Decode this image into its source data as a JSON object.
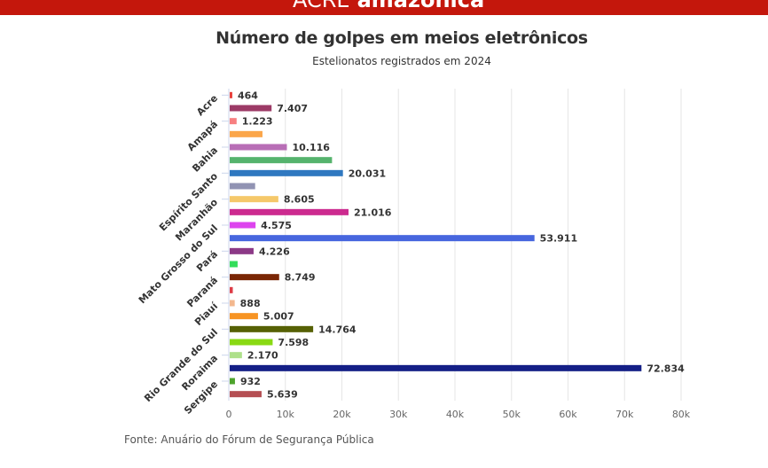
{
  "header": {
    "region": "ACRE",
    "brand": "amazônica"
  },
  "chart_data": {
    "type": "bar",
    "orientation": "horizontal",
    "title": "Número de golpes em meios eletrônicos",
    "subtitle": "Estelionatos registrados em 2024",
    "source": "Fonte: Anuário do Fórum de Segurança Pública",
    "xlim": [
      0,
      80000
    ],
    "xticks": [
      {
        "v": 0,
        "l": "0"
      },
      {
        "v": 10000,
        "l": "10k"
      },
      {
        "v": 20000,
        "l": "20k"
      },
      {
        "v": 30000,
        "l": "30k"
      },
      {
        "v": 40000,
        "l": "40k"
      },
      {
        "v": 50000,
        "l": "50k"
      },
      {
        "v": 60000,
        "l": "60k"
      },
      {
        "v": 70000,
        "l": "70k"
      },
      {
        "v": 80000,
        "l": "80k"
      }
    ],
    "grid": true,
    "bars": [
      {
        "cat": "Acre",
        "value": 464,
        "label": "464",
        "color": "#e8413c"
      },
      {
        "cat": "",
        "value": 7407,
        "label": "7.407",
        "color": "#9c3a66"
      },
      {
        "cat": "Amapá",
        "value": 1223,
        "label": "1.223",
        "color": "#f77f80"
      },
      {
        "cat": "",
        "value": 5800,
        "label": "",
        "color": "#fba64a"
      },
      {
        "cat": "Bahia",
        "value": 10116,
        "label": "10.116",
        "color": "#b86eb6"
      },
      {
        "cat": "",
        "value": 18100,
        "label": "",
        "color": "#55b36d"
      },
      {
        "cat": "Espírito Santo",
        "value": 20031,
        "label": "20.031",
        "color": "#2f78c0"
      },
      {
        "cat": "",
        "value": 4500,
        "label": "",
        "color": "#9193b3"
      },
      {
        "cat": "Maranhão",
        "value": 8605,
        "label": "8.605",
        "color": "#f5c86a"
      },
      {
        "cat": "",
        "value": 21016,
        "label": "21.016",
        "color": "#cc2a8f"
      },
      {
        "cat": "Mato Grosso do Sul",
        "value": 4575,
        "label": "4.575",
        "color": "#dd44ee"
      },
      {
        "cat": "",
        "value": 53911,
        "label": "53.911",
        "color": "#4766de"
      },
      {
        "cat": "Pará",
        "value": 4226,
        "label": "4.226",
        "color": "#8c3987"
      },
      {
        "cat": "",
        "value": 1400,
        "label": "",
        "color": "#33dd5a"
      },
      {
        "cat": "Paraná",
        "value": 8749,
        "label": "8.749",
        "color": "#7a2605"
      },
      {
        "cat": "",
        "value": 550,
        "label": "",
        "color": "#dd3c47"
      },
      {
        "cat": "Piauí",
        "value": 888,
        "label": "888",
        "color": "#f3b88e"
      },
      {
        "cat": "",
        "value": 5007,
        "label": "5.007",
        "color": "#f79423"
      },
      {
        "cat": "Rio Grande do Sul",
        "value": 14764,
        "label": "14.764",
        "color": "#566105"
      },
      {
        "cat": "",
        "value": 7598,
        "label": "7.598",
        "color": "#89d913"
      },
      {
        "cat": "Roraima",
        "value": 2170,
        "label": "2.170",
        "color": "#aee08a"
      },
      {
        "cat": "",
        "value": 72834,
        "label": "72.834",
        "color": "#141f86"
      },
      {
        "cat": "Sergipe",
        "value": 932,
        "label": "932",
        "color": "#4da32c"
      },
      {
        "cat": "",
        "value": 5639,
        "label": "5.639",
        "color": "#b54f53"
      }
    ]
  }
}
